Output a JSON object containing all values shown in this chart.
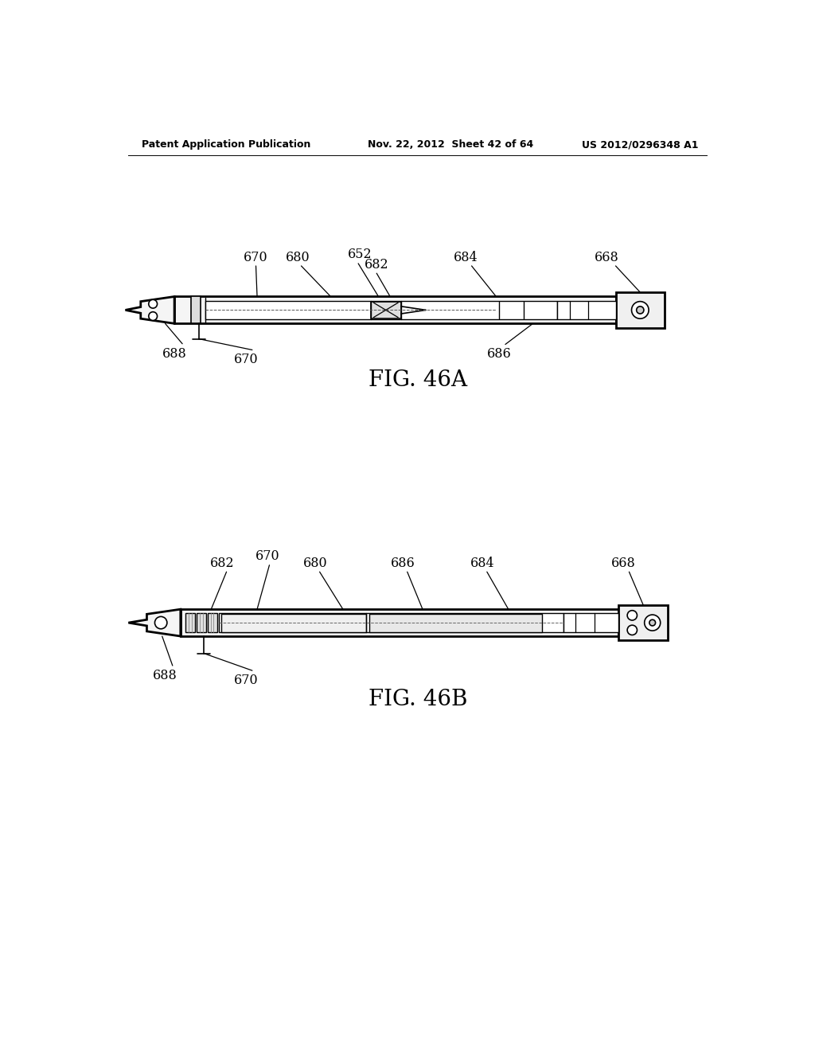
{
  "bg_color": "#ffffff",
  "text_color": "#000000",
  "header_left": "Patent Application Publication",
  "header_center": "Nov. 22, 2012  Sheet 42 of 64",
  "header_right": "US 2012/0296348 A1",
  "fig_a_label": "FIG. 46A",
  "fig_b_label": "FIG. 46B",
  "line_color": "#000000"
}
